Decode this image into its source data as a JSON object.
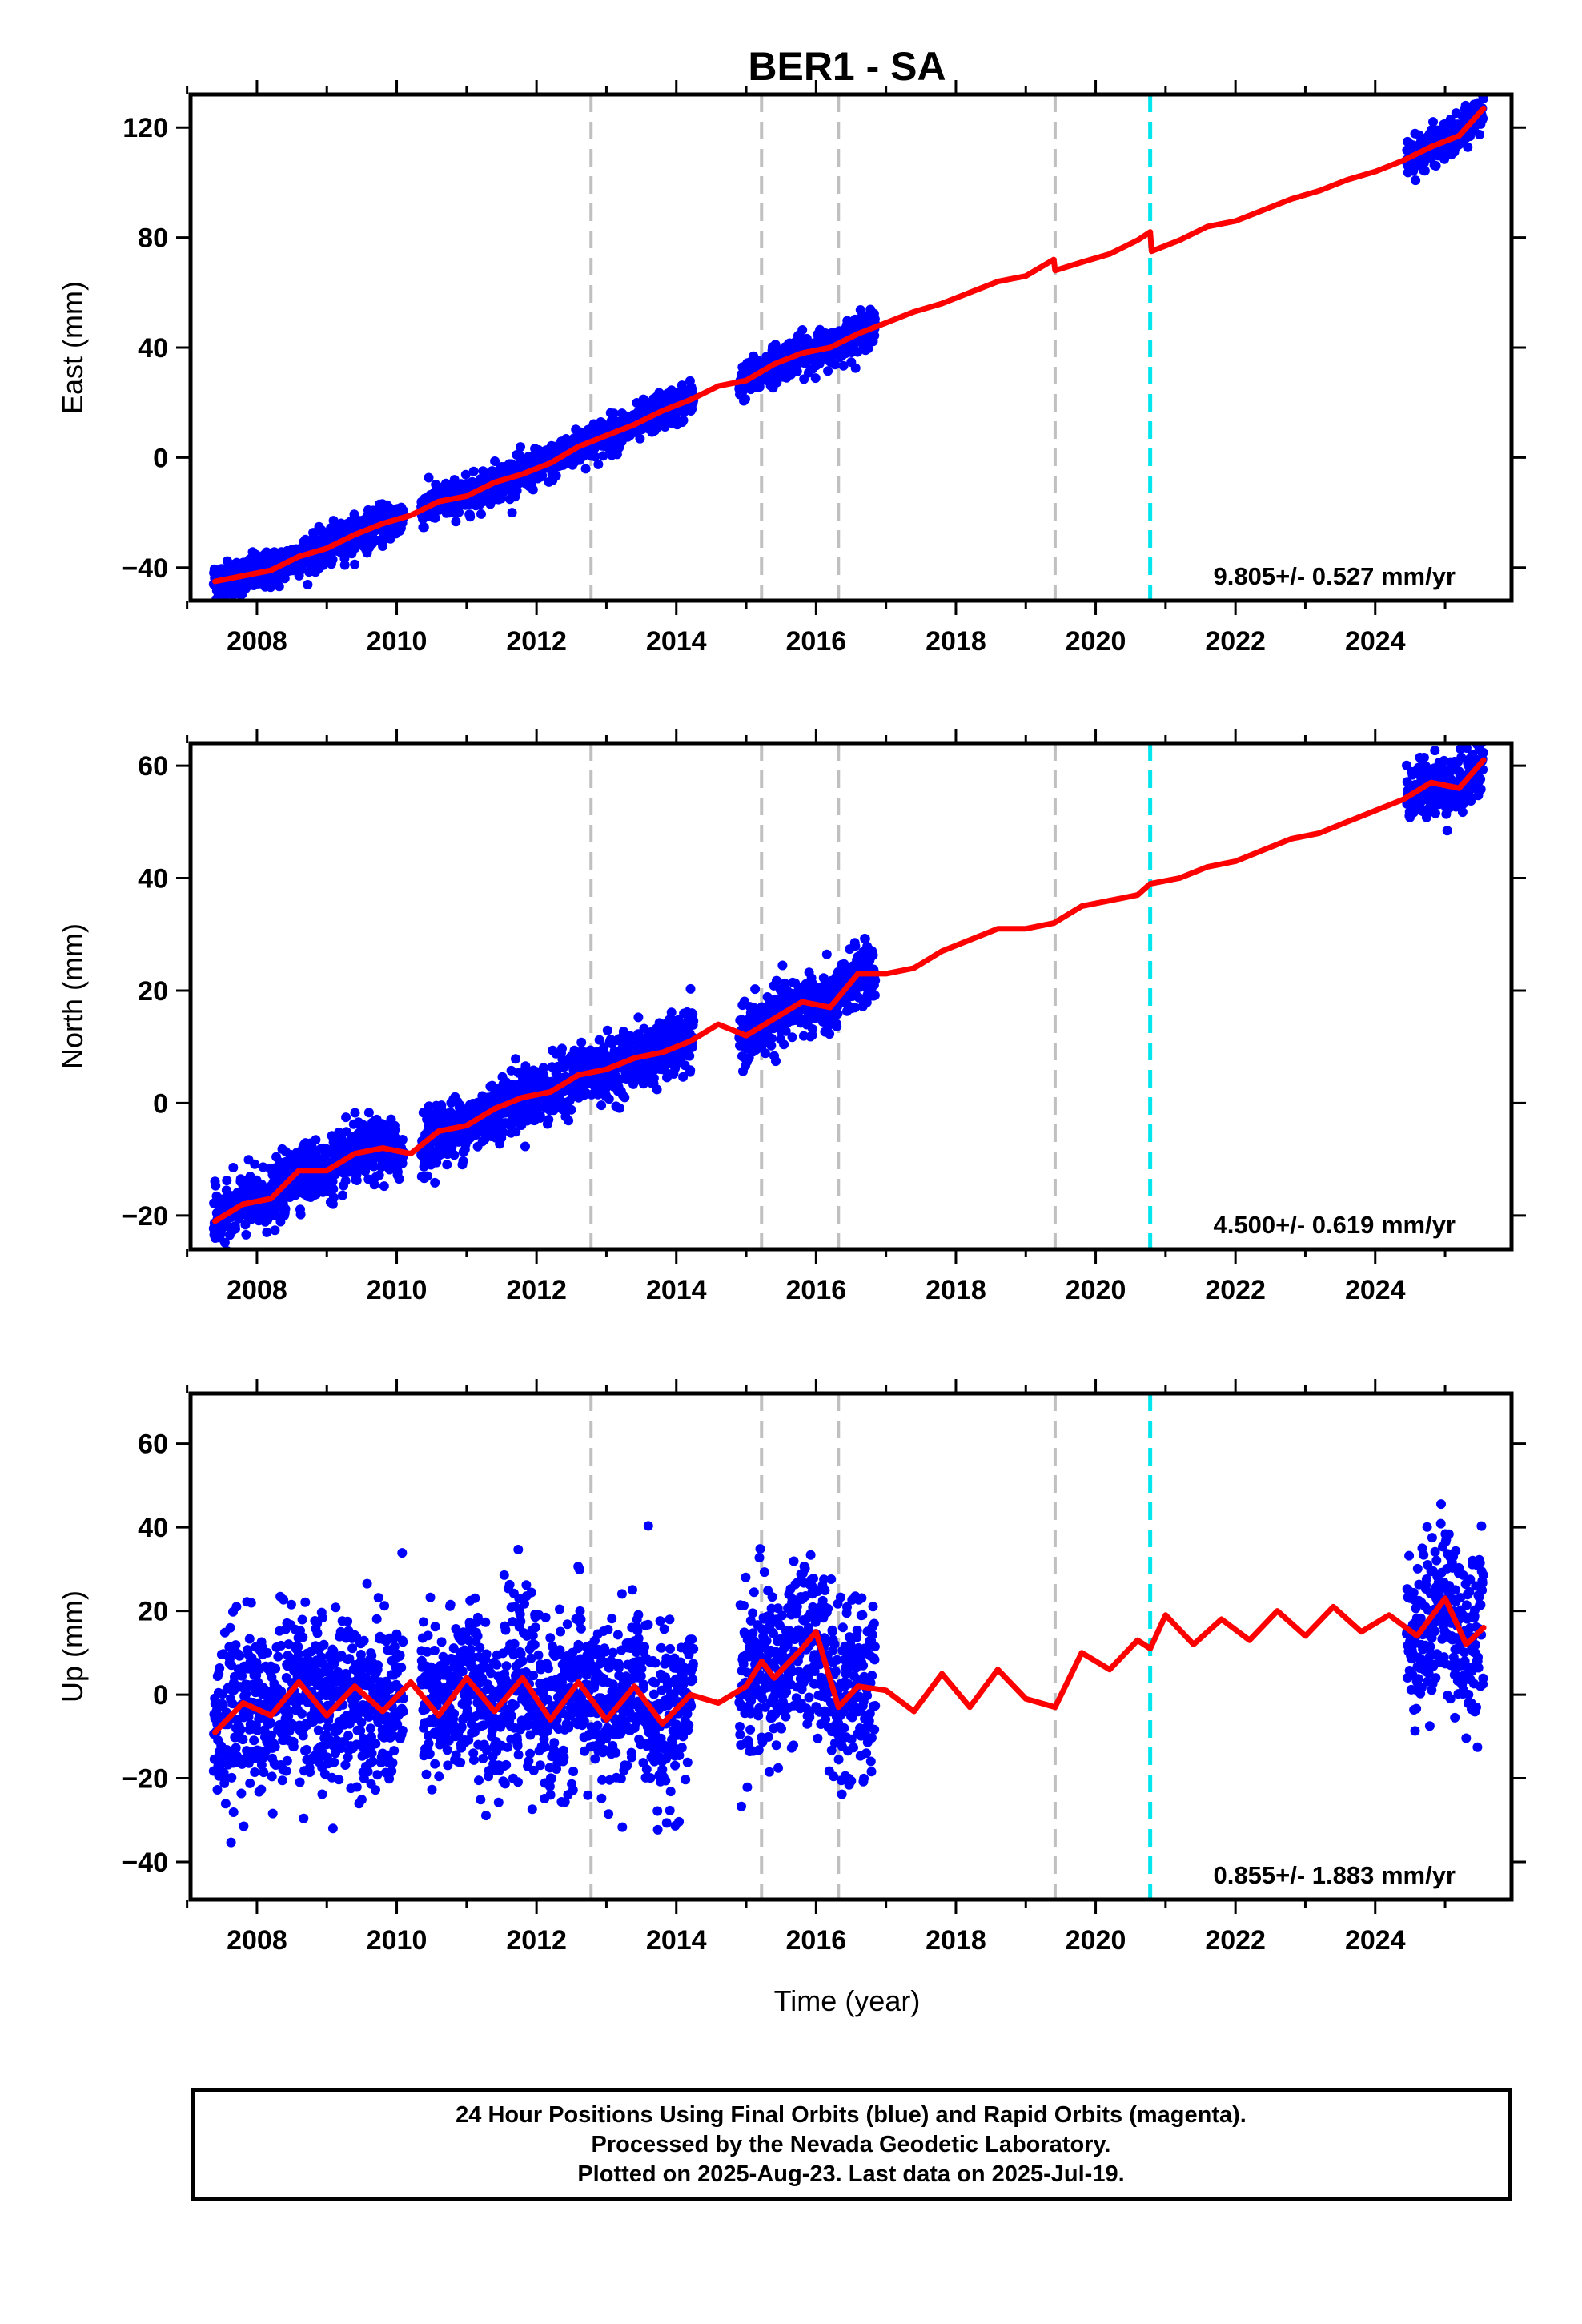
{
  "title": "BER1 - SA",
  "xlabel": "Time (year)",
  "x_ticks": [
    "2008",
    "2010",
    "2012",
    "2014",
    "2016",
    "2018",
    "2020",
    "2022",
    "2024"
  ],
  "colors": {
    "observations": "#0000ff",
    "model": "#ff0000",
    "equipment_change": "#c0c0c0",
    "earthquake": "#00e5ee",
    "frame": "#000000"
  },
  "vertical_markers": {
    "equipment_change_years": [
      2012.78,
      2015.22,
      2016.32,
      2019.42
    ],
    "cyan_marker_year": 2020.78
  },
  "footer": {
    "line1": "24 Hour Positions Using Final Orbits (blue) and Rapid Orbits (magenta).",
    "line2": "Processed by the Nevada Geodetic Laboratory.",
    "line3": "Plotted on 2025-Aug-23. Last data on 2025-Jul-19."
  },
  "chart_data": [
    {
      "type": "scatter",
      "component": "East",
      "ylabel": "East (mm)",
      "rate_text": "9.805+/- 0.527 mm/yr",
      "xlim": [
        2007.05,
        2025.95
      ],
      "ylim": [
        -52,
        132
      ],
      "y_ticks": [
        -40,
        0,
        40,
        80,
        120
      ],
      "data_segments": [
        [
          2007.38,
          2010.1
        ],
        [
          2010.35,
          2014.25
        ],
        [
          2014.9,
          2016.85
        ],
        [
          2024.45,
          2025.55
        ]
      ],
      "noise_mm": 3.2,
      "series": [
        {
          "kind": "model",
          "x": [
            2007.4,
            2007.8,
            2008.2,
            2008.6,
            2009.0,
            2009.4,
            2009.8,
            2010.2,
            2010.6,
            2011.0,
            2011.4,
            2011.8,
            2012.2,
            2012.6,
            2013.0,
            2013.4,
            2013.8,
            2014.2,
            2014.6,
            2015.0,
            2015.4,
            2015.8,
            2016.2,
            2016.6,
            2017.0,
            2017.4,
            2017.8,
            2018.2,
            2018.6,
            2019.0,
            2019.4,
            2019.42,
            2019.8,
            2020.2,
            2020.6,
            2020.78,
            2020.8,
            2021.2,
            2021.6,
            2022.0,
            2022.4,
            2022.8,
            2023.2,
            2023.6,
            2024.0,
            2024.4,
            2024.8,
            2025.2,
            2025.55
          ],
          "y": [
            -45,
            -43,
            -41,
            -36,
            -33,
            -28,
            -24,
            -21,
            -16,
            -14,
            -9,
            -6,
            -2,
            4,
            8,
            12,
            17,
            21,
            26,
            28,
            34,
            38,
            40,
            45,
            49,
            53,
            56,
            60,
            64,
            66,
            72,
            68,
            71,
            74,
            79,
            82,
            75,
            79,
            84,
            86,
            90,
            94,
            97,
            101,
            104,
            108,
            113,
            117,
            127
          ]
        }
      ]
    },
    {
      "type": "scatter",
      "component": "North",
      "ylabel": "North (mm)",
      "rate_text": "4.500+/- 0.619 mm/yr",
      "xlim": [
        2007.05,
        2025.95
      ],
      "ylim": [
        -26,
        64
      ],
      "y_ticks": [
        -20,
        0,
        20,
        40,
        60
      ],
      "data_segments": [
        [
          2007.38,
          2010.1
        ],
        [
          2010.35,
          2014.25
        ],
        [
          2014.9,
          2016.85
        ],
        [
          2024.45,
          2025.55
        ]
      ],
      "noise_mm": 2.6,
      "series": [
        {
          "kind": "model",
          "x": [
            2007.4,
            2007.8,
            2008.2,
            2008.6,
            2009.0,
            2009.4,
            2009.8,
            2010.2,
            2010.6,
            2011.0,
            2011.4,
            2011.8,
            2012.2,
            2012.6,
            2013.0,
            2013.4,
            2013.8,
            2014.2,
            2014.6,
            2015.0,
            2015.4,
            2015.8,
            2016.2,
            2016.6,
            2017.0,
            2017.4,
            2017.8,
            2018.2,
            2018.6,
            2019.0,
            2019.4,
            2019.8,
            2020.2,
            2020.6,
            2020.78,
            2021.2,
            2021.6,
            2022.0,
            2022.4,
            2022.8,
            2023.2,
            2023.6,
            2024.0,
            2024.4,
            2024.8,
            2025.2,
            2025.55
          ],
          "y": [
            -21,
            -18,
            -17,
            -12,
            -12,
            -9,
            -8,
            -9,
            -5,
            -4,
            -1,
            1,
            2,
            5,
            6,
            8,
            9,
            11,
            14,
            12,
            15,
            18,
            17,
            23,
            23,
            24,
            27,
            29,
            31,
            31,
            32,
            35,
            36,
            37,
            39,
            40,
            42,
            43,
            45,
            47,
            48,
            50,
            52,
            54,
            57,
            56,
            61
          ]
        }
      ]
    },
    {
      "type": "scatter",
      "component": "Up",
      "ylabel": "Up (mm)",
      "rate_text": "0.855+/- 1.883 mm/yr",
      "xlim": [
        2007.05,
        2025.95
      ],
      "ylim": [
        -49,
        72
      ],
      "y_ticks": [
        -40,
        -20,
        0,
        20,
        40,
        60
      ],
      "data_segments": [
        [
          2007.38,
          2010.1
        ],
        [
          2010.35,
          2014.25
        ],
        [
          2014.9,
          2016.85
        ],
        [
          2024.45,
          2025.55
        ]
      ],
      "noise_mm": 10,
      "series": [
        {
          "kind": "model",
          "x": [
            2007.4,
            2007.8,
            2008.2,
            2008.6,
            2009.0,
            2009.4,
            2009.8,
            2010.2,
            2010.6,
            2011.0,
            2011.4,
            2011.8,
            2012.2,
            2012.6,
            2013.0,
            2013.4,
            2013.8,
            2014.2,
            2014.6,
            2015.0,
            2015.22,
            2015.4,
            2015.8,
            2016.0,
            2016.32,
            2016.6,
            2017.0,
            2017.4,
            2017.8,
            2018.2,
            2018.6,
            2019.0,
            2019.42,
            2019.8,
            2020.2,
            2020.6,
            2020.78,
            2021.0,
            2021.4,
            2021.8,
            2022.2,
            2022.6,
            2023.0,
            2023.4,
            2023.8,
            2024.2,
            2024.6,
            2025.0,
            2025.3,
            2025.55
          ],
          "y": [
            -9,
            -2,
            -5,
            3,
            -5,
            2,
            -4,
            3,
            -5,
            4,
            -4,
            4,
            -6,
            3,
            -6,
            2,
            -7,
            0,
            -2,
            2,
            8,
            4,
            11,
            15,
            -3,
            2,
            1,
            -4,
            5,
            -3,
            6,
            -1,
            -3,
            10,
            6,
            13,
            11,
            19,
            12,
            18,
            13,
            20,
            14,
            21,
            15,
            19,
            14,
            23,
            12,
            16
          ]
        }
      ]
    }
  ]
}
